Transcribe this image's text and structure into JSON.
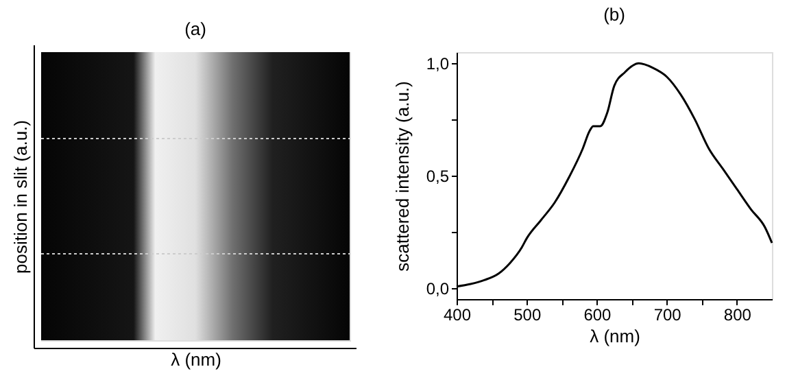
{
  "chart_data": [
    {
      "type": "other",
      "title": "(a)",
      "xlabel": "λ (nm)",
      "ylabel": "position in slit (a.u.)"
    },
    {
      "type": "line",
      "title": "(b)",
      "xlabel": "λ (nm)",
      "ylabel": "scattered intensity (a.u.)",
      "x": [
        400,
        420,
        440,
        460,
        476,
        493,
        500,
        520,
        540,
        560,
        580,
        590,
        595,
        605,
        615,
        625,
        640,
        660,
        680,
        700,
        720,
        740,
        760,
        780,
        800,
        820,
        840,
        850
      ],
      "series": [
        {
          "color": "#000000",
          "values": [
            0.006,
            0.017,
            0.035,
            0.064,
            0.11,
            0.18,
            0.22,
            0.3,
            0.38,
            0.49,
            0.62,
            0.7,
            0.72,
            0.72,
            0.78,
            0.9,
            0.96,
            1.0,
            0.98,
            0.94,
            0.86,
            0.75,
            0.62,
            0.53,
            0.44,
            0.35,
            0.27,
            0.2
          ]
        }
      ],
      "xlim": [
        400,
        850
      ],
      "xticks": [
        400,
        {
          "value": 450,
          "label": null
        },
        500,
        {
          "value": 550,
          "label": null
        },
        600,
        {
          "value": 650,
          "label": null
        },
        700,
        {
          "value": 750,
          "label": null
        },
        800
      ],
      "ylim": [
        -0.05,
        1.05
      ],
      "yticks": [
        {
          "value": 0,
          "label": "0,0"
        },
        {
          "value": 0.25,
          "label": null
        },
        {
          "value": 0.5,
          "label": "0,5"
        },
        {
          "value": 0.75,
          "label": null
        },
        {
          "value": 1,
          "label": "1,0"
        }
      ],
      "grid": false,
      "marker": "none",
      "line_style": "solid"
    }
  ]
}
